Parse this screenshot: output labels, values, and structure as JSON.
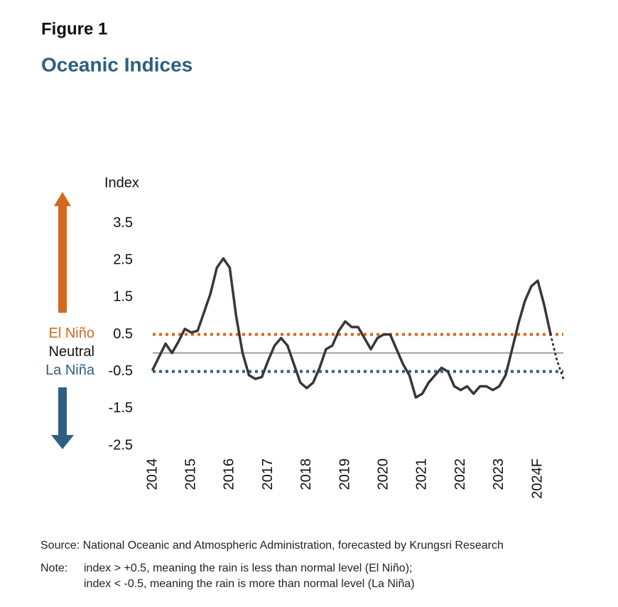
{
  "figure_label": "Figure 1",
  "source": "Source: National Oceanic and Atmospheric Administration, forecasted by Krungsri Research",
  "note_label": "Note:",
  "note_lines": [
    "index >  +0.5, meaning the rain is less than normal level (El Niño);",
    "index < -0.5, meaning the rain is more than normal level (La Niña)"
  ],
  "chart_data": {
    "type": "line",
    "title": "Oceanic Indices",
    "y_label": "Index",
    "categories": [
      "2014",
      null,
      null,
      null,
      null,
      null,
      "2015",
      null,
      null,
      null,
      null,
      null,
      "2016",
      null,
      null,
      null,
      null,
      null,
      "2017",
      null,
      null,
      null,
      null,
      null,
      "2018",
      null,
      null,
      null,
      null,
      null,
      "2019",
      null,
      null,
      null,
      null,
      null,
      "2020",
      null,
      null,
      null,
      null,
      null,
      "2021",
      null,
      null,
      null,
      null,
      null,
      "2022",
      null,
      null,
      null,
      null,
      null,
      "2023",
      null,
      null,
      null,
      null,
      null,
      "2024F",
      null,
      null,
      null,
      null
    ],
    "series": [
      {
        "color": "#3d3535",
        "style": "solid",
        "values": [
          -0.45,
          -0.1,
          0.25,
          0.0,
          0.3,
          0.65,
          0.55,
          0.6,
          1.1,
          1.6,
          2.3,
          2.55,
          2.3,
          1.0,
          0.0,
          -0.6,
          -0.7,
          -0.65,
          -0.2,
          0.2,
          0.4,
          0.2,
          -0.3,
          -0.8,
          -0.95,
          -0.8,
          -0.4,
          0.1,
          0.2,
          0.6,
          0.85,
          0.7,
          0.7,
          0.4,
          0.1,
          0.4,
          0.5,
          0.5,
          0.1,
          -0.3,
          -0.6,
          -1.2,
          -1.1,
          -0.8,
          -0.6,
          -0.4,
          -0.5,
          -0.9,
          -1.0,
          -0.9,
          -1.1,
          -0.9,
          -0.9,
          -1.0,
          -0.9,
          -0.6,
          0.1,
          0.8,
          1.4,
          1.8,
          1.95,
          1.3,
          0.5,
          null,
          null
        ]
      },
      {
        "color": "#3d3535",
        "style": "dotted",
        "values": [
          null,
          null,
          null,
          null,
          null,
          null,
          null,
          null,
          null,
          null,
          null,
          null,
          null,
          null,
          null,
          null,
          null,
          null,
          null,
          null,
          null,
          null,
          null,
          null,
          null,
          null,
          null,
          null,
          null,
          null,
          null,
          null,
          null,
          null,
          null,
          null,
          null,
          null,
          null,
          null,
          null,
          null,
          null,
          null,
          null,
          null,
          null,
          null,
          null,
          null,
          null,
          null,
          null,
          null,
          null,
          null,
          null,
          null,
          null,
          null,
          null,
          null,
          0.5,
          -0.2,
          -0.7
        ]
      }
    ],
    "ylim": [
      -2.5,
      3.5
    ],
    "yticks": [
      3.5,
      2.5,
      1.5,
      0.5,
      -0.5,
      -1.5,
      -2.5
    ],
    "reference_lines": [
      {
        "value": 0.5,
        "label": "El Niño",
        "color": "#d2691e",
        "label_color": "#d2691e",
        "style": "dotted"
      },
      {
        "value": 0,
        "label": "Neutral",
        "color": "#8c8080",
        "label_color": "#111111",
        "style": "solid"
      },
      {
        "value": -0.5,
        "label": "La Niña",
        "color": "#2e5f82",
        "label_color": "#2e5f82",
        "style": "dotted"
      }
    ]
  }
}
